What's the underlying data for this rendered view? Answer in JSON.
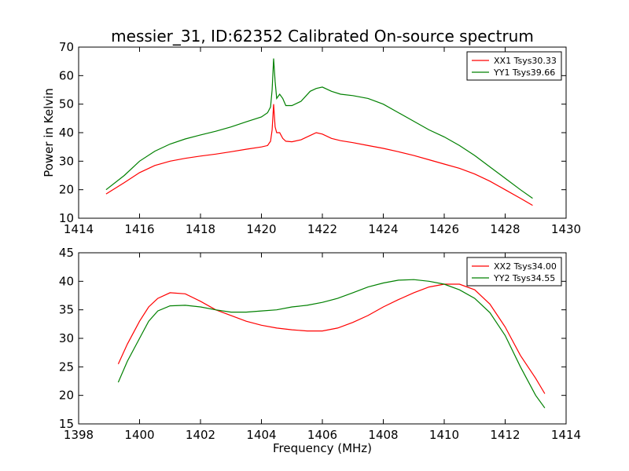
{
  "figure_title": "messier_31, ID:62352 Calibrated On-source spectrum",
  "ylabel": "Power in Kelvin",
  "xlabel": "Frequency (MHz)",
  "chart_data": [
    {
      "type": "line",
      "xlim": [
        1414,
        1430
      ],
      "ylim": [
        10,
        70
      ],
      "xticks": [
        1414,
        1416,
        1418,
        1420,
        1422,
        1424,
        1426,
        1428,
        1430
      ],
      "yticks": [
        10,
        20,
        30,
        40,
        50,
        60,
        70
      ],
      "legend_position": "top-right",
      "series": [
        {
          "name": "XX1 Tsys30.33",
          "color": "#ff0000",
          "x": [
            1414.9,
            1415.5,
            1416,
            1416.5,
            1417,
            1417.5,
            1418,
            1418.5,
            1419,
            1419.5,
            1420,
            1420.2,
            1420.3,
            1420.35,
            1420.4,
            1420.45,
            1420.5,
            1420.6,
            1420.7,
            1420.8,
            1421,
            1421.3,
            1421.6,
            1421.8,
            1422,
            1422.3,
            1422.6,
            1423,
            1423.5,
            1424,
            1424.5,
            1425,
            1425.5,
            1426,
            1426.5,
            1427,
            1427.5,
            1428,
            1428.5,
            1428.9
          ],
          "y": [
            18.5,
            22.5,
            26,
            28.5,
            30,
            31,
            31.8,
            32.5,
            33.3,
            34.2,
            35,
            35.5,
            37,
            41,
            50,
            42,
            40,
            40,
            38,
            37,
            36.8,
            37.5,
            39,
            40,
            39.5,
            38,
            37.2,
            36.5,
            35.5,
            34.5,
            33.3,
            32,
            30.5,
            29,
            27.5,
            25.5,
            23,
            20,
            17,
            14.5
          ]
        },
        {
          "name": "YY1 Tsys39.66",
          "color": "#008000",
          "x": [
            1414.9,
            1415.5,
            1416,
            1416.5,
            1417,
            1417.5,
            1418,
            1418.5,
            1419,
            1419.5,
            1420,
            1420.2,
            1420.3,
            1420.35,
            1420.4,
            1420.45,
            1420.5,
            1420.6,
            1420.7,
            1420.8,
            1421,
            1421.3,
            1421.6,
            1421.8,
            1422,
            1422.3,
            1422.6,
            1423,
            1423.5,
            1424,
            1424.5,
            1425,
            1425.5,
            1426,
            1426.5,
            1427,
            1427.5,
            1428,
            1428.5,
            1428.9
          ],
          "y": [
            20,
            25,
            30,
            33.5,
            36,
            37.8,
            39.2,
            40.5,
            42,
            43.8,
            45.5,
            47,
            49,
            55,
            66,
            58,
            52,
            53.5,
            52,
            49.5,
            49.5,
            51,
            54.5,
            55.5,
            56,
            54.5,
            53.5,
            53,
            52,
            50,
            47,
            44,
            41,
            38.5,
            35.5,
            32,
            28,
            24,
            20,
            17
          ]
        }
      ]
    },
    {
      "type": "line",
      "xlim": [
        1398,
        1414
      ],
      "ylim": [
        15,
        45
      ],
      "xticks": [
        1398,
        1400,
        1402,
        1404,
        1406,
        1408,
        1410,
        1412,
        1414
      ],
      "yticks": [
        15,
        20,
        25,
        30,
        35,
        40,
        45
      ],
      "legend_position": "top-right",
      "series": [
        {
          "name": "XX2 Tsys34.00",
          "color": "#ff0000",
          "x": [
            1399.3,
            1399.6,
            1400,
            1400.3,
            1400.6,
            1401,
            1401.5,
            1402,
            1402.5,
            1403,
            1403.5,
            1404,
            1404.5,
            1405,
            1405.5,
            1406,
            1406.5,
            1407,
            1407.5,
            1408,
            1408.5,
            1409,
            1409.5,
            1410,
            1410.5,
            1411,
            1411.5,
            1412,
            1412.5,
            1413,
            1413.3
          ],
          "y": [
            25.5,
            29,
            33,
            35.5,
            37,
            38,
            37.8,
            36.5,
            35,
            34,
            33,
            32.3,
            31.8,
            31.5,
            31.3,
            31.3,
            31.8,
            32.8,
            34,
            35.5,
            36.8,
            38,
            39,
            39.5,
            39.5,
            38.5,
            36,
            32,
            27,
            23,
            20.3
          ]
        },
        {
          "name": "YY2 Tsys34.55",
          "color": "#008000",
          "x": [
            1399.3,
            1399.6,
            1400,
            1400.3,
            1400.6,
            1401,
            1401.5,
            1402,
            1402.5,
            1403,
            1403.5,
            1404,
            1404.5,
            1405,
            1405.5,
            1406,
            1406.5,
            1407,
            1407.5,
            1408,
            1408.5,
            1409,
            1409.5,
            1410,
            1410.5,
            1411,
            1411.5,
            1412,
            1412.5,
            1413,
            1413.3
          ],
          "y": [
            22.3,
            26,
            30,
            33,
            34.8,
            35.7,
            35.8,
            35.5,
            35,
            34.6,
            34.6,
            34.8,
            35,
            35.5,
            35.8,
            36.3,
            37,
            38,
            39,
            39.7,
            40.2,
            40.3,
            40,
            39.5,
            38.5,
            37,
            34.5,
            30.5,
            25,
            20,
            17.8
          ]
        }
      ]
    }
  ]
}
